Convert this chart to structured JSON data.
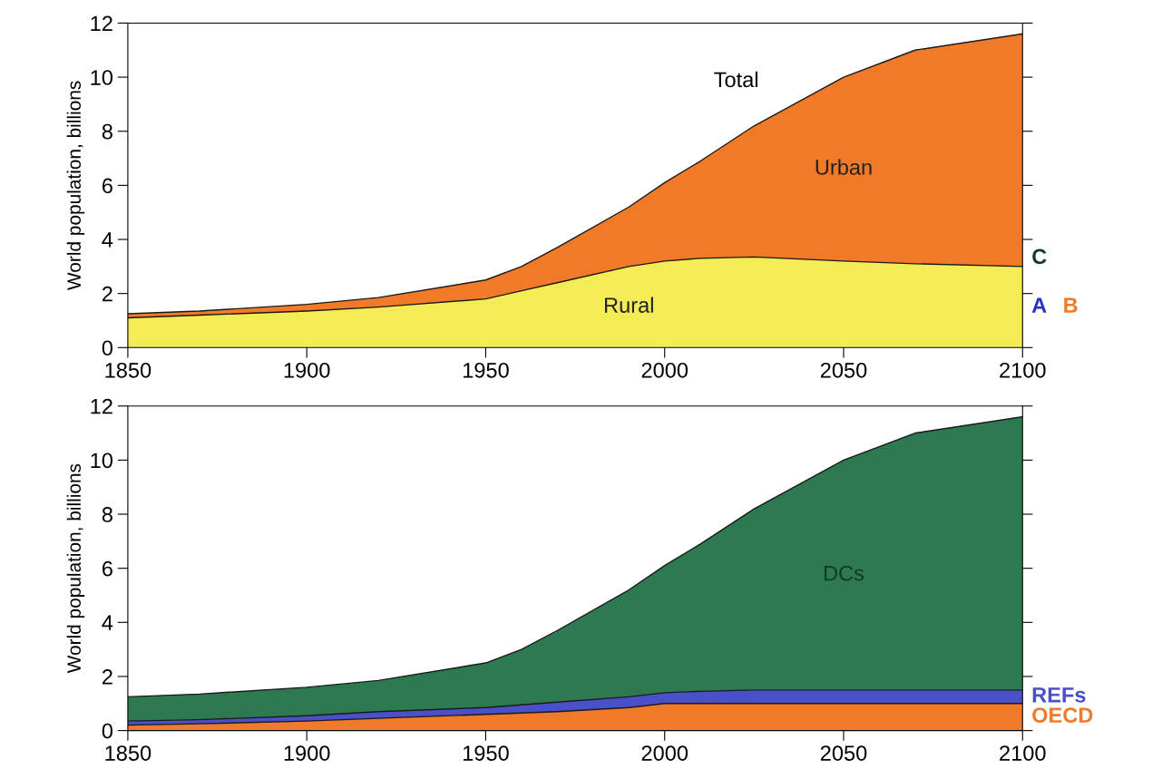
{
  "chart_data": [
    {
      "type": "area",
      "stacked": true,
      "ylabel": "World population, billions",
      "x": [
        1850,
        1870,
        1900,
        1920,
        1950,
        1960,
        1970,
        1990,
        2000,
        2010,
        2025,
        2050,
        2070,
        2100
      ],
      "series": [
        {
          "name": "Rural",
          "color": "#f3ec55",
          "values": [
            1.1,
            1.2,
            1.35,
            1.5,
            1.8,
            2.1,
            2.4,
            3.0,
            3.2,
            3.3,
            3.35,
            3.2,
            3.1,
            3.0
          ]
        },
        {
          "name": "Urban",
          "color": "#f07a28",
          "values": [
            0.15,
            0.15,
            0.25,
            0.35,
            0.7,
            0.9,
            1.3,
            2.2,
            2.9,
            3.6,
            4.85,
            6.8,
            7.9,
            8.6
          ]
        }
      ],
      "annotations": [
        "Total",
        "C",
        "A",
        "B"
      ],
      "xlim": [
        1850,
        2100
      ],
      "xticks": [
        1850,
        1900,
        1950,
        2000,
        2050,
        2100
      ],
      "ylim": [
        0,
        12
      ],
      "yticks": [
        0,
        2,
        4,
        6,
        8,
        10,
        12
      ],
      "grid": false,
      "legend": false
    },
    {
      "type": "area",
      "stacked": true,
      "ylabel": "World population, billions",
      "x": [
        1850,
        1870,
        1900,
        1920,
        1950,
        1960,
        1970,
        1990,
        2000,
        2010,
        2025,
        2050,
        2070,
        2100
      ],
      "series": [
        {
          "name": "OECD",
          "color": "#f07a28",
          "values": [
            0.2,
            0.25,
            0.35,
            0.45,
            0.6,
            0.65,
            0.7,
            0.85,
            1.0,
            1.0,
            1.0,
            1.0,
            1.0,
            1.0
          ]
        },
        {
          "name": "REFs",
          "color": "#4a50c8",
          "values": [
            0.15,
            0.15,
            0.2,
            0.25,
            0.25,
            0.3,
            0.35,
            0.4,
            0.4,
            0.45,
            0.5,
            0.5,
            0.5,
            0.5
          ]
        },
        {
          "name": "DCs",
          "color": "#2e7a50",
          "values": [
            0.9,
            0.95,
            1.05,
            1.15,
            1.65,
            2.05,
            2.65,
            3.95,
            4.7,
            5.45,
            6.7,
            8.5,
            9.5,
            10.1
          ]
        }
      ],
      "xlim": [
        1850,
        2100
      ],
      "xticks": [
        1850,
        1900,
        1950,
        2000,
        2050,
        2100
      ],
      "ylim": [
        0,
        12
      ],
      "yticks": [
        0,
        2,
        4,
        6,
        8,
        10,
        12
      ],
      "grid": false,
      "legend": false
    }
  ]
}
